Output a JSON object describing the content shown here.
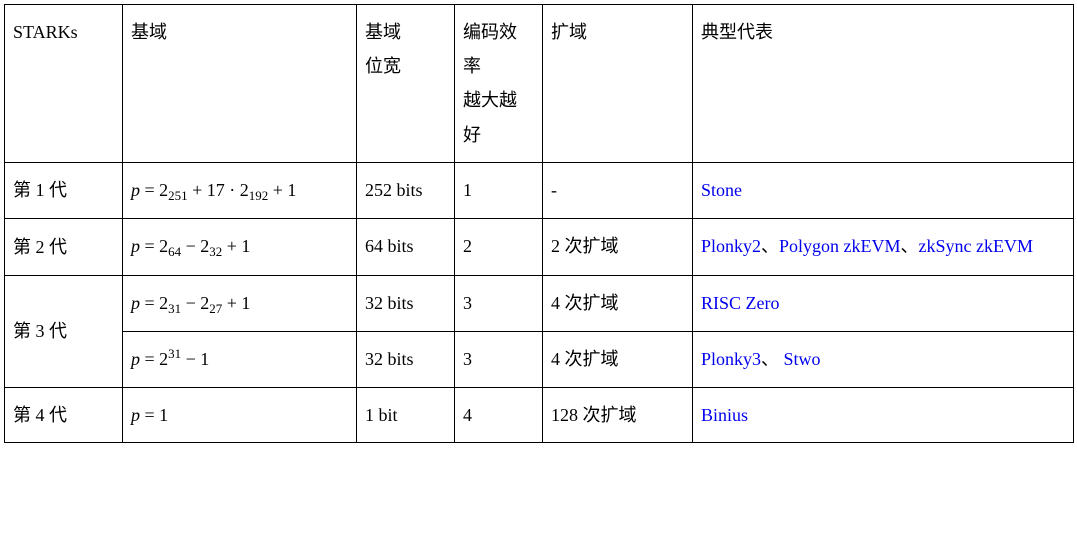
{
  "headers": {
    "starks": "STARKs",
    "domain": "基域",
    "bits_l1": "基域",
    "bits_l2": "位宽",
    "eff_l1": "编码效率",
    "eff_l2": "越大越好",
    "ext": "扩域",
    "rep": "典型代表"
  },
  "rows": {
    "r1": {
      "gen": "第 1 代",
      "p_pre": "p",
      "p_eq": " = 2",
      "p_s1": "251",
      "p_mid": " + 17 · 2",
      "p_s2": "192",
      "p_tail": " + 1",
      "bits": "252 bits",
      "eff": "1",
      "ext": "-",
      "reps": {
        "a": "Stone"
      }
    },
    "r2": {
      "gen": "第 2 代",
      "p_pre": "p",
      "p_eq": " = 2",
      "p_s1": "64",
      "p_mid": " − 2",
      "p_s2": "32",
      "p_tail": " + 1",
      "bits": "64 bits",
      "eff": "2",
      "ext": "2 次扩域",
      "reps": {
        "a": "Plonky2",
        "sep1": "、",
        "b": "Polygon zkEVM",
        "sep2": "、",
        "c": "zkSync zkEVM"
      }
    },
    "r3": {
      "gen": "第 3 代",
      "a": {
        "p_pre": "p",
        "p_eq": " = 2",
        "p_s1": "31",
        "p_mid": " − 2",
        "p_s2": "27",
        "p_tail": " + 1",
        "bits": "32 bits",
        "eff": "3",
        "ext": "4 次扩域",
        "reps": {
          "a": "RISC Zero"
        }
      },
      "b": {
        "p_pre": "p",
        "p_eq": " = 2",
        "p_s1": "31",
        "p_tail": " − 1",
        "bits": "32 bits",
        "eff": "3",
        "ext": "4 次扩域",
        "reps": {
          "a": "Plonky3",
          "sep1": "、",
          "b": "Stwo"
        }
      }
    },
    "r4": {
      "gen": "第 4 代",
      "p_pre": "p",
      "p_tail": " = 1",
      "bits": "1 bit",
      "eff": "4",
      "ext": "128 次扩域",
      "reps": {
        "a": "Binius"
      }
    }
  }
}
